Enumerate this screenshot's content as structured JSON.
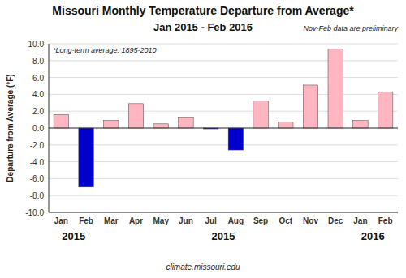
{
  "chart_data": {
    "type": "bar",
    "title": "Missouri Monthly Temperature Departure from Average*",
    "subtitle": "Jan 2015 - Feb 2016",
    "ylabel": "Departure from Average (°F)",
    "categories": [
      "Jan",
      "Feb",
      "Mar",
      "Apr",
      "May",
      "Jun",
      "Jul",
      "Aug",
      "Sep",
      "Oct",
      "Nov",
      "Dec",
      "Jan",
      "Feb"
    ],
    "values": [
      1.6,
      -7.0,
      0.9,
      2.9,
      0.5,
      1.3,
      -0.1,
      -2.6,
      3.2,
      0.7,
      5.1,
      9.4,
      0.9,
      4.3
    ],
    "colors": [
      "#FFB6C1",
      "#0000CD",
      "#FFB6C1",
      "#FFB6C1",
      "#FFB6C1",
      "#FFB6C1",
      "#0000CD",
      "#0000CD",
      "#FFB6C1",
      "#FFB6C1",
      "#FFB6C1",
      "#FFB6C1",
      "#FFB6C1",
      "#FFB6C1"
    ],
    "ylim": [
      -10.0,
      10.0
    ],
    "yticks": [
      {
        "value": -10.0,
        "label": "-10.0"
      },
      {
        "value": -8.0,
        "label": "-8.0"
      },
      {
        "value": -6.0,
        "label": "-6.0"
      },
      {
        "value": -4.0,
        "label": "-4.0"
      },
      {
        "value": -2.0,
        "label": "-2.0"
      },
      {
        "value": 0.0,
        "label": "0.0"
      },
      {
        "value": 2.0,
        "label": "2.0"
      },
      {
        "value": 4.0,
        "label": "4.0"
      },
      {
        "value": 6.0,
        "label": "6.0"
      },
      {
        "value": 8.0,
        "label": "8.0"
      },
      {
        "value": 10.0,
        "label": "10.0"
      }
    ],
    "grid": true,
    "annotations": [
      "*Long-term average: 1895-2010",
      "Nov-Feb data are preliminary",
      "climate.missouri.edu",
      "2015",
      "2016",
      "2015"
    ]
  }
}
